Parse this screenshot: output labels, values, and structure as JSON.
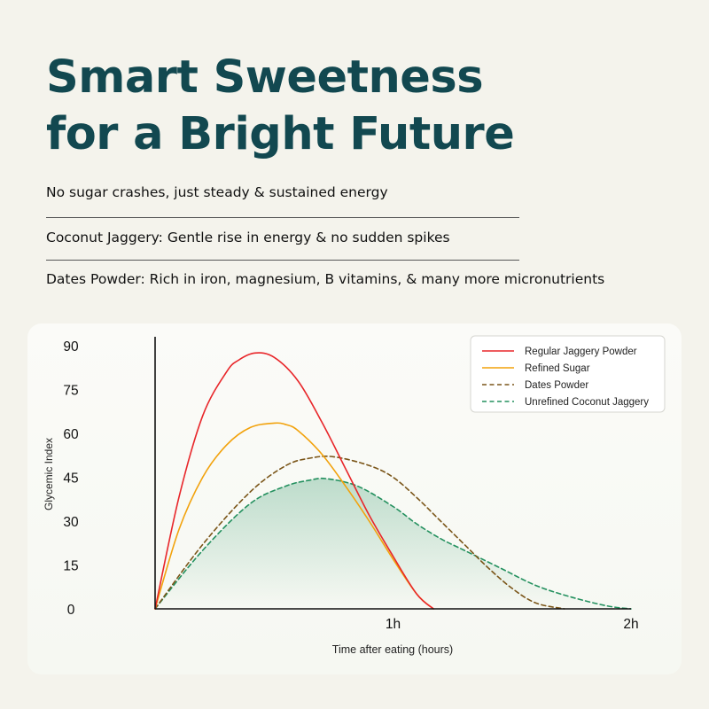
{
  "headline": {
    "line1": "Smart Sweetness",
    "line2": "for a Bright Future"
  },
  "benefits": [
    "No sugar crashes, just steady & sustained energy",
    "Coconut Jaggery: Gentle rise in energy & no sudden spikes",
    "Dates Powder: Rich in iron, magnesium, B vitamins, & many more micronutrients"
  ],
  "colors": {
    "title": "#124850",
    "background": "#f4f3ec"
  },
  "chart_data": {
    "type": "line",
    "xlabel": "Time after eating (hours)",
    "ylabel": "Glycemic Index",
    "xlim": [
      0,
      2
    ],
    "ylim": [
      0,
      90
    ],
    "x_ticks": [
      {
        "value": 1,
        "label": "1h"
      },
      {
        "value": 2,
        "label": "2h"
      }
    ],
    "y_ticks": [
      0,
      15,
      30,
      45,
      60,
      75,
      90
    ],
    "legend_position": "top-right",
    "grid": false,
    "series": [
      {
        "name": "Regular Jaggery Powder",
        "color": "#e8262a",
        "style": "solid",
        "x": [
          0,
          0.1,
          0.2,
          0.3,
          0.35,
          0.42,
          0.5,
          0.6,
          0.7,
          0.8,
          0.9,
          1.0,
          1.1,
          1.17
        ],
        "y": [
          0,
          38,
          66,
          81,
          85,
          87.5,
          86,
          78,
          64,
          48,
          32,
          18,
          5,
          0
        ]
      },
      {
        "name": "Refined Sugar",
        "color": "#f2a20c",
        "style": "solid",
        "x": [
          0,
          0.1,
          0.2,
          0.3,
          0.4,
          0.5,
          0.55,
          0.6,
          0.7,
          0.8,
          0.9,
          1.0,
          1.1,
          1.17
        ],
        "y": [
          0,
          27,
          45,
          56,
          62,
          63.5,
          63,
          61,
          53,
          42,
          30,
          17,
          5,
          0
        ]
      },
      {
        "name": "Dates Powder",
        "color": "#7a5518",
        "style": "dashed",
        "x": [
          0,
          0.2,
          0.4,
          0.55,
          0.65,
          0.75,
          0.9,
          1.0,
          1.1,
          1.2,
          1.3,
          1.4,
          1.5,
          1.6,
          1.72
        ],
        "y": [
          0,
          22,
          40,
          49,
          51.5,
          52,
          49,
          45,
          38,
          30,
          22,
          14,
          7,
          2,
          0
        ]
      },
      {
        "name": "Unrefined Coconut Jaggery",
        "color": "#23905e",
        "style": "dashed",
        "fill": true,
        "x": [
          0,
          0.2,
          0.4,
          0.55,
          0.65,
          0.72,
          0.85,
          1.0,
          1.1,
          1.2,
          1.3,
          1.45,
          1.6,
          1.75,
          1.9,
          2.0
        ],
        "y": [
          0,
          20,
          36,
          42,
          44,
          44.5,
          42,
          35,
          29,
          24,
          20,
          14,
          8,
          4,
          1,
          0
        ]
      }
    ]
  }
}
